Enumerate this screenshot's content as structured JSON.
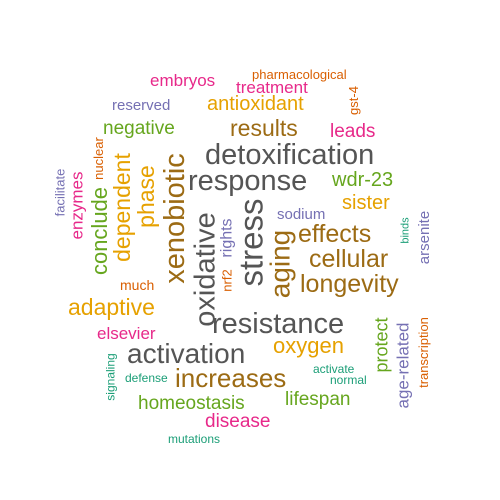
{
  "palette": {
    "dark_gray": "#555555",
    "brown": "#9c6b14",
    "gold": "#e6a100",
    "green": "#66a61e",
    "magenta": "#e7298a",
    "purple": "#7570b3",
    "orange": "#d95f02",
    "teal": "#1b9e77"
  },
  "words": [
    {
      "text": "pharmacological",
      "color": "orange",
      "vertical": false
    },
    {
      "text": "embryos",
      "color": "magenta",
      "vertical": false
    },
    {
      "text": "treatment",
      "color": "magenta",
      "vertical": false
    },
    {
      "text": "reserved",
      "color": "purple",
      "vertical": false
    },
    {
      "text": "antioxidant",
      "color": "gold",
      "vertical": false
    },
    {
      "text": "gst-4",
      "color": "orange",
      "vertical": true
    },
    {
      "text": "negative",
      "color": "green",
      "vertical": false
    },
    {
      "text": "results",
      "color": "brown",
      "vertical": false
    },
    {
      "text": "leads",
      "color": "magenta",
      "vertical": false
    },
    {
      "text": "nuclear",
      "color": "orange",
      "vertical": true
    },
    {
      "text": "detoxification",
      "color": "dark_gray",
      "vertical": false
    },
    {
      "text": "facilitate",
      "color": "purple",
      "vertical": true
    },
    {
      "text": "enzymes",
      "color": "magenta",
      "vertical": true
    },
    {
      "text": "conclude",
      "color": "green",
      "vertical": true
    },
    {
      "text": "dependent",
      "color": "gold",
      "vertical": true
    },
    {
      "text": "phase",
      "color": "gold",
      "vertical": true
    },
    {
      "text": "response",
      "color": "dark_gray",
      "vertical": false
    },
    {
      "text": "wdr-23",
      "color": "green",
      "vertical": false
    },
    {
      "text": "xenobiotic",
      "color": "brown",
      "vertical": true
    },
    {
      "text": "sister",
      "color": "gold",
      "vertical": false
    },
    {
      "text": "sodium",
      "color": "purple",
      "vertical": false
    },
    {
      "text": "oxidative",
      "color": "dark_gray",
      "vertical": true
    },
    {
      "text": "stress",
      "color": "dark_gray",
      "vertical": true
    },
    {
      "text": "rights",
      "color": "purple",
      "vertical": true
    },
    {
      "text": "aging",
      "color": "brown",
      "vertical": true
    },
    {
      "text": "effects",
      "color": "brown",
      "vertical": false
    },
    {
      "text": "binds",
      "color": "teal",
      "vertical": true
    },
    {
      "text": "arsenite",
      "color": "purple",
      "vertical": true
    },
    {
      "text": "cellular",
      "color": "brown",
      "vertical": false
    },
    {
      "text": "nrf2",
      "color": "orange",
      "vertical": true
    },
    {
      "text": "much",
      "color": "orange",
      "vertical": false
    },
    {
      "text": "longevity",
      "color": "brown",
      "vertical": false
    },
    {
      "text": "adaptive",
      "color": "gold",
      "vertical": false
    },
    {
      "text": "resistance",
      "color": "dark_gray",
      "vertical": false
    },
    {
      "text": "elsevier",
      "color": "magenta",
      "vertical": false
    },
    {
      "text": "protect",
      "color": "green",
      "vertical": true
    },
    {
      "text": "transcription",
      "color": "orange",
      "vertical": true
    },
    {
      "text": "oxygen",
      "color": "gold",
      "vertical": false
    },
    {
      "text": "activation",
      "color": "dark_gray",
      "vertical": false
    },
    {
      "text": "age-related",
      "color": "purple",
      "vertical": true
    },
    {
      "text": "signaling",
      "color": "teal",
      "vertical": true
    },
    {
      "text": "defense",
      "color": "teal",
      "vertical": false
    },
    {
      "text": "activate",
      "color": "teal",
      "vertical": false
    },
    {
      "text": "normal",
      "color": "teal",
      "vertical": false
    },
    {
      "text": "increases",
      "color": "brown",
      "vertical": false
    },
    {
      "text": "homeostasis",
      "color": "green",
      "vertical": false
    },
    {
      "text": "lifespan",
      "color": "green",
      "vertical": false
    },
    {
      "text": "disease",
      "color": "magenta",
      "vertical": false
    },
    {
      "text": "mutations",
      "color": "teal",
      "vertical": false
    }
  ]
}
